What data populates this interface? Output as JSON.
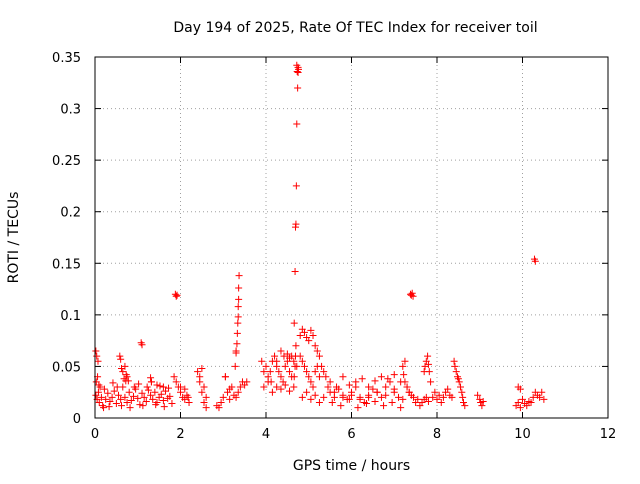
{
  "chart_data": {
    "type": "scatter",
    "title": "Day 194 of 2025, Rate Of TEC Index for receiver toil",
    "xlabel": "GPS time / hours",
    "ylabel": "ROTI / TECUs",
    "xlim": [
      0,
      12
    ],
    "ylim": [
      0,
      0.35
    ],
    "x_ticks": [
      0,
      2,
      4,
      6,
      8,
      10,
      12
    ],
    "x_tick_labels": [
      "0",
      "2",
      "4",
      "6",
      "8",
      "10",
      "12"
    ],
    "y_ticks": [
      0,
      0.05,
      0.1,
      0.15,
      0.2,
      0.25,
      0.3,
      0.35
    ],
    "y_tick_labels": [
      "0",
      "0.05",
      "0.1",
      "0.15",
      "0.2",
      "0.25",
      "0.3",
      "0.35"
    ],
    "grid": true,
    "marker": "plus",
    "color": "#ff0000",
    "points": {
      "x": [
        0.02,
        0.05,
        0.08,
        0.1,
        0.12,
        0.15,
        0.18,
        0.22,
        0.25,
        0.3,
        0.35,
        0.4,
        0.45,
        0.5,
        0.55,
        0.6,
        0.65,
        0.7,
        0.75,
        0.8,
        0.85,
        0.9,
        0.95,
        1.0,
        1.05,
        1.1,
        1.15,
        1.2,
        1.25,
        1.3,
        1.35,
        1.4,
        1.45,
        1.5,
        1.55,
        1.6,
        1.65,
        1.7,
        1.75,
        1.8,
        0.03,
        0.06,
        0.09,
        0.2,
        0.33,
        0.42,
        0.52,
        0.62,
        0.72,
        0.82,
        0.92,
        1.02,
        1.12,
        1.22,
        1.32,
        1.42,
        1.52,
        1.62,
        1.72,
        0.02,
        0.04,
        0.07,
        0.58,
        0.6,
        0.62,
        0.65,
        0.7,
        0.73,
        0.68,
        0.75,
        0.78,
        1.08,
        1.1,
        1.3,
        1.32,
        1.45,
        1.6,
        1.88,
        1.9,
        1.92,
        1.95,
        2.0,
        2.05,
        2.1,
        2.15,
        2.2,
        1.85,
        1.9,
        2.0,
        2.1,
        2.18,
        2.4,
        2.45,
        2.5,
        2.55,
        2.6,
        2.45,
        2.5,
        2.55,
        2.6,
        2.85,
        2.9,
        2.95,
        3.0,
        3.05,
        3.1,
        3.15,
        3.2,
        3.25,
        3.3,
        3.35,
        3.4,
        3.45,
        3.5,
        3.3,
        3.32,
        3.33,
        3.34,
        3.35,
        3.36,
        3.36,
        3.37,
        3.35,
        3.3,
        3.28,
        3.05,
        3.15,
        3.55,
        3.9,
        3.95,
        4.0,
        4.05,
        4.1,
        4.15,
        4.2,
        4.25,
        4.3,
        4.35,
        4.4,
        4.45,
        4.5,
        4.55,
        4.6,
        3.95,
        4.05,
        4.15,
        4.25,
        4.35,
        4.45,
        4.55,
        4.65,
        4.12,
        4.25,
        4.35,
        4.42,
        4.5,
        4.55,
        4.6,
        4.65,
        4.72,
        4.66,
        4.68,
        4.69,
        4.7,
        4.71,
        4.72,
        4.74,
        4.75,
        4.76,
        4.75,
        4.73,
        4.72,
        4.7,
        4.69,
        4.68,
        4.66,
        4.8,
        4.85,
        4.9,
        4.95,
        5.0,
        5.05,
        5.1,
        5.15,
        5.2,
        5.25,
        5.3,
        5.35,
        5.4,
        4.8,
        4.85,
        4.9,
        4.95,
        5.0,
        5.05,
        5.1,
        5.15,
        5.2,
        5.25,
        4.85,
        4.95,
        5.05,
        5.15,
        5.25,
        5.35,
        5.45,
        5.5,
        5.6,
        5.7,
        5.8,
        5.9,
        6.0,
        6.1,
        6.2,
        6.3,
        6.4,
        6.5,
        6.6,
        6.7,
        6.8,
        6.9,
        7.0,
        7.1,
        7.2,
        5.5,
        5.65,
        5.8,
        5.95,
        6.1,
        6.25,
        6.4,
        6.55,
        6.7,
        6.85,
        7.0,
        7.15,
        5.55,
        5.75,
        5.95,
        6.15,
        6.35,
        6.55,
        6.75,
        6.95,
        7.15,
        5.6,
        5.8,
        6.0,
        6.2,
        6.4,
        6.6,
        6.8,
        7.0,
        7.25,
        7.3,
        7.35,
        7.4,
        7.45,
        7.5,
        7.55,
        7.6,
        7.65,
        7.7,
        7.75,
        7.8,
        7.2,
        7.22,
        7.25,
        7.3,
        7.35,
        7.38,
        7.4,
        7.42,
        7.44,
        7.7,
        7.72,
        7.75,
        7.78,
        7.8,
        7.82,
        7.85,
        7.9,
        7.95,
        8.0,
        8.05,
        8.1,
        8.15,
        8.2,
        8.25,
        8.3,
        8.35,
        8.4,
        8.42,
        8.45,
        8.48,
        8.5,
        8.52,
        8.55,
        8.58,
        8.6,
        8.62,
        8.65,
        8.95,
        9.0,
        9.02,
        9.05,
        9.08,
        9.85,
        9.9,
        9.95,
        10.0,
        10.05,
        10.1,
        10.15,
        10.2,
        10.25,
        10.3,
        10.35,
        10.4,
        10.45,
        10.5,
        9.9,
        9.95,
        10.28,
        10.3
      ],
      "y": [
        0.022,
        0.018,
        0.025,
        0.015,
        0.03,
        0.02,
        0.012,
        0.028,
        0.018,
        0.024,
        0.016,
        0.02,
        0.026,
        0.014,
        0.022,
        0.018,
        0.03,
        0.02,
        0.015,
        0.025,
        0.017,
        0.021,
        0.028,
        0.019,
        0.013,
        0.024,
        0.02,
        0.016,
        0.027,
        0.022,
        0.018,
        0.025,
        0.015,
        0.02,
        0.023,
        0.017,
        0.026,
        0.019,
        0.021,
        0.014,
        0.035,
        0.04,
        0.032,
        0.01,
        0.011,
        0.034,
        0.03,
        0.012,
        0.036,
        0.01,
        0.03,
        0.033,
        0.012,
        0.03,
        0.035,
        0.013,
        0.031,
        0.011,
        0.029,
        0.065,
        0.06,
        0.055,
        0.06,
        0.057,
        0.048,
        0.045,
        0.05,
        0.042,
        0.038,
        0.04,
        0.036,
        0.073,
        0.071,
        0.039,
        0.035,
        0.032,
        0.03,
        0.12,
        0.118,
        0.119,
        0.03,
        0.025,
        0.02,
        0.018,
        0.022,
        0.015,
        0.04,
        0.035,
        0.03,
        0.028,
        0.02,
        0.045,
        0.04,
        0.048,
        0.03,
        0.02,
        0.035,
        0.025,
        0.015,
        0.01,
        0.012,
        0.01,
        0.015,
        0.02,
        0.04,
        0.025,
        0.018,
        0.03,
        0.022,
        0.02,
        0.025,
        0.03,
        0.035,
        0.032,
        0.063,
        0.072,
        0.082,
        0.092,
        0.098,
        0.115,
        0.126,
        0.138,
        0.108,
        0.065,
        0.05,
        0.04,
        0.028,
        0.035,
        0.055,
        0.045,
        0.05,
        0.04,
        0.045,
        0.055,
        0.06,
        0.05,
        0.045,
        0.04,
        0.035,
        0.05,
        0.055,
        0.045,
        0.04,
        0.03,
        0.035,
        0.025,
        0.03,
        0.028,
        0.032,
        0.026,
        0.03,
        0.035,
        0.055,
        0.065,
        0.06,
        0.062,
        0.058,
        0.06,
        0.055,
        0.05,
        0.092,
        0.142,
        0.185,
        0.188,
        0.225,
        0.285,
        0.32,
        0.335,
        0.338,
        0.34,
        0.336,
        0.342,
        0.07,
        0.06,
        0.05,
        0.04,
        0.08,
        0.086,
        0.083,
        0.078,
        0.075,
        0.085,
        0.08,
        0.07,
        0.065,
        0.06,
        0.05,
        0.045,
        0.04,
        0.06,
        0.055,
        0.05,
        0.045,
        0.04,
        0.035,
        0.03,
        0.045,
        0.05,
        0.04,
        0.02,
        0.025,
        0.018,
        0.022,
        0.015,
        0.02,
        0.03,
        0.025,
        0.02,
        0.028,
        0.022,
        0.018,
        0.025,
        0.03,
        0.02,
        0.015,
        0.022,
        0.028,
        0.025,
        0.02,
        0.03,
        0.035,
        0.025,
        0.02,
        0.018,
        0.035,
        0.03,
        0.04,
        0.032,
        0.035,
        0.038,
        0.03,
        0.036,
        0.04,
        0.038,
        0.042,
        0.035,
        0.015,
        0.012,
        0.018,
        0.01,
        0.014,
        0.016,
        0.012,
        0.015,
        0.01,
        0.025,
        0.02,
        0.022,
        0.018,
        0.02,
        0.025,
        0.022,
        0.028,
        0.035,
        0.03,
        0.025,
        0.022,
        0.02,
        0.015,
        0.018,
        0.012,
        0.015,
        0.018,
        0.02,
        0.016,
        0.05,
        0.042,
        0.055,
        0.03,
        0.025,
        0.12,
        0.119,
        0.121,
        0.118,
        0.045,
        0.05,
        0.055,
        0.06,
        0.052,
        0.045,
        0.035,
        0.02,
        0.025,
        0.018,
        0.022,
        0.015,
        0.02,
        0.025,
        0.028,
        0.022,
        0.02,
        0.055,
        0.05,
        0.045,
        0.04,
        0.038,
        0.035,
        0.03,
        0.025,
        0.02,
        0.015,
        0.012,
        0.022,
        0.018,
        0.015,
        0.012,
        0.016,
        0.012,
        0.015,
        0.01,
        0.018,
        0.014,
        0.012,
        0.016,
        0.015,
        0.02,
        0.025,
        0.022,
        0.02,
        0.025,
        0.018,
        0.03,
        0.028,
        0.154,
        0.152
      ]
    }
  }
}
